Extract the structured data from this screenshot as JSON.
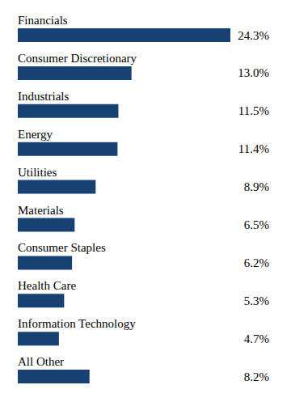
{
  "chart_data": {
    "type": "bar",
    "orientation": "horizontal",
    "categories": [
      "Financials",
      "Consumer Discretionary",
      "Industrials",
      "Energy",
      "Utilities",
      "Materials",
      "Consumer Staples",
      "Health Care",
      "Information Technology",
      "All Other"
    ],
    "values": [
      24.3,
      13.0,
      11.5,
      11.4,
      8.9,
      6.5,
      6.2,
      5.3,
      4.7,
      8.2
    ],
    "value_labels": [
      "24.3%",
      "13.0%",
      "11.5%",
      "11.4%",
      "8.9%",
      "6.5%",
      "6.2%",
      "5.3%",
      "4.7%",
      "8.2%"
    ],
    "color": "#164172",
    "xlim": [
      0,
      24.3
    ],
    "data_labels": true,
    "tick_labels": false,
    "grid": false
  }
}
